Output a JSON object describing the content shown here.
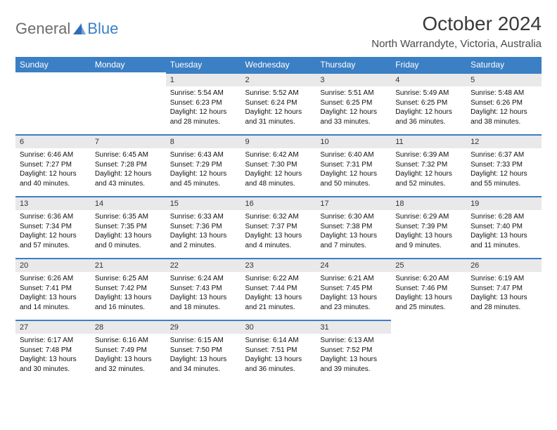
{
  "brand": {
    "part1": "General",
    "part2": "Blue"
  },
  "title": "October 2024",
  "location": "North Warrandyte, Victoria, Australia",
  "colors": {
    "header_bg": "#3b7fc4",
    "header_text": "#ffffff",
    "daynum_bg": "#e9e9e9",
    "daynum_border": "#3b7fc4",
    "background": "#ffffff",
    "text": "#000000",
    "brand_gray": "#6c6c6c",
    "brand_blue": "#3b7fc4"
  },
  "weekdays": [
    "Sunday",
    "Monday",
    "Tuesday",
    "Wednesday",
    "Thursday",
    "Friday",
    "Saturday"
  ],
  "cells": [
    null,
    null,
    {
      "n": "1",
      "sr": "5:54 AM",
      "ss": "6:23 PM",
      "dl": "12 hours and 28 minutes."
    },
    {
      "n": "2",
      "sr": "5:52 AM",
      "ss": "6:24 PM",
      "dl": "12 hours and 31 minutes."
    },
    {
      "n": "3",
      "sr": "5:51 AM",
      "ss": "6:25 PM",
      "dl": "12 hours and 33 minutes."
    },
    {
      "n": "4",
      "sr": "5:49 AM",
      "ss": "6:25 PM",
      "dl": "12 hours and 36 minutes."
    },
    {
      "n": "5",
      "sr": "5:48 AM",
      "ss": "6:26 PM",
      "dl": "12 hours and 38 minutes."
    },
    {
      "n": "6",
      "sr": "6:46 AM",
      "ss": "7:27 PM",
      "dl": "12 hours and 40 minutes."
    },
    {
      "n": "7",
      "sr": "6:45 AM",
      "ss": "7:28 PM",
      "dl": "12 hours and 43 minutes."
    },
    {
      "n": "8",
      "sr": "6:43 AM",
      "ss": "7:29 PM",
      "dl": "12 hours and 45 minutes."
    },
    {
      "n": "9",
      "sr": "6:42 AM",
      "ss": "7:30 PM",
      "dl": "12 hours and 48 minutes."
    },
    {
      "n": "10",
      "sr": "6:40 AM",
      "ss": "7:31 PM",
      "dl": "12 hours and 50 minutes."
    },
    {
      "n": "11",
      "sr": "6:39 AM",
      "ss": "7:32 PM",
      "dl": "12 hours and 52 minutes."
    },
    {
      "n": "12",
      "sr": "6:37 AM",
      "ss": "7:33 PM",
      "dl": "12 hours and 55 minutes."
    },
    {
      "n": "13",
      "sr": "6:36 AM",
      "ss": "7:34 PM",
      "dl": "12 hours and 57 minutes."
    },
    {
      "n": "14",
      "sr": "6:35 AM",
      "ss": "7:35 PM",
      "dl": "13 hours and 0 minutes."
    },
    {
      "n": "15",
      "sr": "6:33 AM",
      "ss": "7:36 PM",
      "dl": "13 hours and 2 minutes."
    },
    {
      "n": "16",
      "sr": "6:32 AM",
      "ss": "7:37 PM",
      "dl": "13 hours and 4 minutes."
    },
    {
      "n": "17",
      "sr": "6:30 AM",
      "ss": "7:38 PM",
      "dl": "13 hours and 7 minutes."
    },
    {
      "n": "18",
      "sr": "6:29 AM",
      "ss": "7:39 PM",
      "dl": "13 hours and 9 minutes."
    },
    {
      "n": "19",
      "sr": "6:28 AM",
      "ss": "7:40 PM",
      "dl": "13 hours and 11 minutes."
    },
    {
      "n": "20",
      "sr": "6:26 AM",
      "ss": "7:41 PM",
      "dl": "13 hours and 14 minutes."
    },
    {
      "n": "21",
      "sr": "6:25 AM",
      "ss": "7:42 PM",
      "dl": "13 hours and 16 minutes."
    },
    {
      "n": "22",
      "sr": "6:24 AM",
      "ss": "7:43 PM",
      "dl": "13 hours and 18 minutes."
    },
    {
      "n": "23",
      "sr": "6:22 AM",
      "ss": "7:44 PM",
      "dl": "13 hours and 21 minutes."
    },
    {
      "n": "24",
      "sr": "6:21 AM",
      "ss": "7:45 PM",
      "dl": "13 hours and 23 minutes."
    },
    {
      "n": "25",
      "sr": "6:20 AM",
      "ss": "7:46 PM",
      "dl": "13 hours and 25 minutes."
    },
    {
      "n": "26",
      "sr": "6:19 AM",
      "ss": "7:47 PM",
      "dl": "13 hours and 28 minutes."
    },
    {
      "n": "27",
      "sr": "6:17 AM",
      "ss": "7:48 PM",
      "dl": "13 hours and 30 minutes."
    },
    {
      "n": "28",
      "sr": "6:16 AM",
      "ss": "7:49 PM",
      "dl": "13 hours and 32 minutes."
    },
    {
      "n": "29",
      "sr": "6:15 AM",
      "ss": "7:50 PM",
      "dl": "13 hours and 34 minutes."
    },
    {
      "n": "30",
      "sr": "6:14 AM",
      "ss": "7:51 PM",
      "dl": "13 hours and 36 minutes."
    },
    {
      "n": "31",
      "sr": "6:13 AM",
      "ss": "7:52 PM",
      "dl": "13 hours and 39 minutes."
    },
    null,
    null
  ],
  "labels": {
    "sunrise": "Sunrise: ",
    "sunset": "Sunset: ",
    "daylight": "Daylight: "
  }
}
